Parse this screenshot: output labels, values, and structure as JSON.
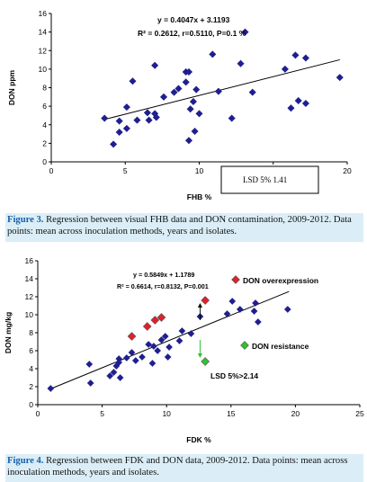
{
  "chart_data": [
    {
      "type": "scatter",
      "xlabel": "FHB %",
      "ylabel": "DON ppm",
      "xlim": [
        0,
        20
      ],
      "ylim": [
        0,
        16
      ],
      "xticks": [
        "0",
        "5",
        "10",
        "15",
        "20"
      ],
      "yticks": [
        "0",
        "2",
        "4",
        "6",
        "8",
        "10",
        "12",
        "14",
        "16"
      ],
      "equation": "y = 0.4047x + 3.1193",
      "stats": "R² = 0.2612, r=0.5110, P=0.1 %",
      "trendline": {
        "slope": 0.4047,
        "intercept": 3.1193,
        "x_range": [
          3.6,
          19.5
        ]
      },
      "annotation": "LSD 5% 1.41",
      "points": [
        {
          "x": 4.2,
          "y": 1.9
        },
        {
          "x": 3.6,
          "y": 4.7
        },
        {
          "x": 4.6,
          "y": 3.2
        },
        {
          "x": 4.6,
          "y": 4.4
        },
        {
          "x": 5.1,
          "y": 3.6
        },
        {
          "x": 5.1,
          "y": 5.9
        },
        {
          "x": 5.5,
          "y": 8.7
        },
        {
          "x": 5.8,
          "y": 4.5
        },
        {
          "x": 6.5,
          "y": 5.3
        },
        {
          "x": 6.6,
          "y": 4.5
        },
        {
          "x": 7.0,
          "y": 5.2
        },
        {
          "x": 7.1,
          "y": 4.8
        },
        {
          "x": 7.0,
          "y": 10.4
        },
        {
          "x": 7.6,
          "y": 7.0
        },
        {
          "x": 8.3,
          "y": 7.5
        },
        {
          "x": 8.6,
          "y": 7.9
        },
        {
          "x": 9.1,
          "y": 8.6
        },
        {
          "x": 9.1,
          "y": 9.7
        },
        {
          "x": 9.3,
          "y": 9.7
        },
        {
          "x": 9.3,
          "y": 2.3
        },
        {
          "x": 9.4,
          "y": 5.7
        },
        {
          "x": 9.6,
          "y": 6.5
        },
        {
          "x": 9.7,
          "y": 3.3
        },
        {
          "x": 9.8,
          "y": 7.8
        },
        {
          "x": 10.0,
          "y": 5.2
        },
        {
          "x": 10.9,
          "y": 11.6
        },
        {
          "x": 11.3,
          "y": 7.6
        },
        {
          "x": 12.2,
          "y": 4.7
        },
        {
          "x": 12.8,
          "y": 10.6
        },
        {
          "x": 13.1,
          "y": 14.0
        },
        {
          "x": 13.6,
          "y": 7.5
        },
        {
          "x": 15.8,
          "y": 10.0
        },
        {
          "x": 16.2,
          "y": 5.8
        },
        {
          "x": 16.7,
          "y": 6.6
        },
        {
          "x": 16.5,
          "y": 11.5
        },
        {
          "x": 17.2,
          "y": 11.2
        },
        {
          "x": 17.2,
          "y": 6.3
        },
        {
          "x": 19.5,
          "y": 9.1
        }
      ]
    },
    {
      "type": "scatter",
      "xlabel": "FDK %",
      "ylabel": "DON mg/kg",
      "xlim": [
        0,
        25
      ],
      "ylim": [
        0,
        16
      ],
      "xticks": [
        "0",
        "5",
        "10",
        "15",
        "20",
        "25"
      ],
      "yticks": [
        "0",
        "2",
        "4",
        "6",
        "8",
        "10",
        "12",
        "14",
        "16"
      ],
      "equation": "y = 0.5849x + 1.1789",
      "stats": "R² = 0.6614, r=0.8132, P=0.001",
      "trendline": {
        "slope": 0.5849,
        "intercept": 1.1789,
        "x_range": [
          1.0,
          19.5
        ]
      },
      "legend_red": "DON overexpression",
      "legend_green": "DON resistance",
      "annotation": "LSD 5%>2.14",
      "colors": {
        "series": "#1f1f8f",
        "overexpression": "#e0202a",
        "resistance": "#2ec22e"
      },
      "points": [
        {
          "x": 1.0,
          "y": 1.8
        },
        {
          "x": 4.0,
          "y": 4.5
        },
        {
          "x": 4.1,
          "y": 2.4
        },
        {
          "x": 5.6,
          "y": 3.2
        },
        {
          "x": 5.9,
          "y": 3.6
        },
        {
          "x": 6.1,
          "y": 4.3
        },
        {
          "x": 6.3,
          "y": 5.1
        },
        {
          "x": 6.3,
          "y": 4.7
        },
        {
          "x": 6.4,
          "y": 3.0
        },
        {
          "x": 6.9,
          "y": 5.2
        },
        {
          "x": 7.3,
          "y": 5.8
        },
        {
          "x": 7.6,
          "y": 4.9
        },
        {
          "x": 8.1,
          "y": 5.3
        },
        {
          "x": 8.6,
          "y": 6.7
        },
        {
          "x": 8.9,
          "y": 4.6
        },
        {
          "x": 9.0,
          "y": 6.5
        },
        {
          "x": 9.3,
          "y": 6.0
        },
        {
          "x": 9.6,
          "y": 7.2
        },
        {
          "x": 9.9,
          "y": 7.6
        },
        {
          "x": 10.1,
          "y": 5.3
        },
        {
          "x": 10.2,
          "y": 6.4
        },
        {
          "x": 11.0,
          "y": 7.1
        },
        {
          "x": 11.2,
          "y": 8.2
        },
        {
          "x": 11.9,
          "y": 7.9
        },
        {
          "x": 12.6,
          "y": 9.8
        },
        {
          "x": 14.7,
          "y": 10.1
        },
        {
          "x": 15.1,
          "y": 11.5
        },
        {
          "x": 15.7,
          "y": 10.6
        },
        {
          "x": 16.8,
          "y": 10.4
        },
        {
          "x": 16.9,
          "y": 11.3
        },
        {
          "x": 17.1,
          "y": 9.2
        },
        {
          "x": 19.4,
          "y": 10.6
        }
      ],
      "red_points": [
        {
          "x": 7.3,
          "y": 7.6
        },
        {
          "x": 8.5,
          "y": 8.7
        },
        {
          "x": 9.1,
          "y": 9.4
        },
        {
          "x": 9.6,
          "y": 9.7
        },
        {
          "x": 13.0,
          "y": 11.6
        }
      ],
      "green_points": [
        {
          "x": 13.0,
          "y": 4.8
        }
      ]
    }
  ],
  "captions": {
    "fig3_label": "Figure 3.",
    "fig3_text": " Regression between visual FHB data and DON contamination, 2009-2012. Data points: mean across inoculation methods, years and isolates.",
    "fig4_label": "Figure 4.",
    "fig4_text": " Regression between FDK and DON data, 2009-2012. Data points: mean across inoculation methods, years and isolates."
  }
}
